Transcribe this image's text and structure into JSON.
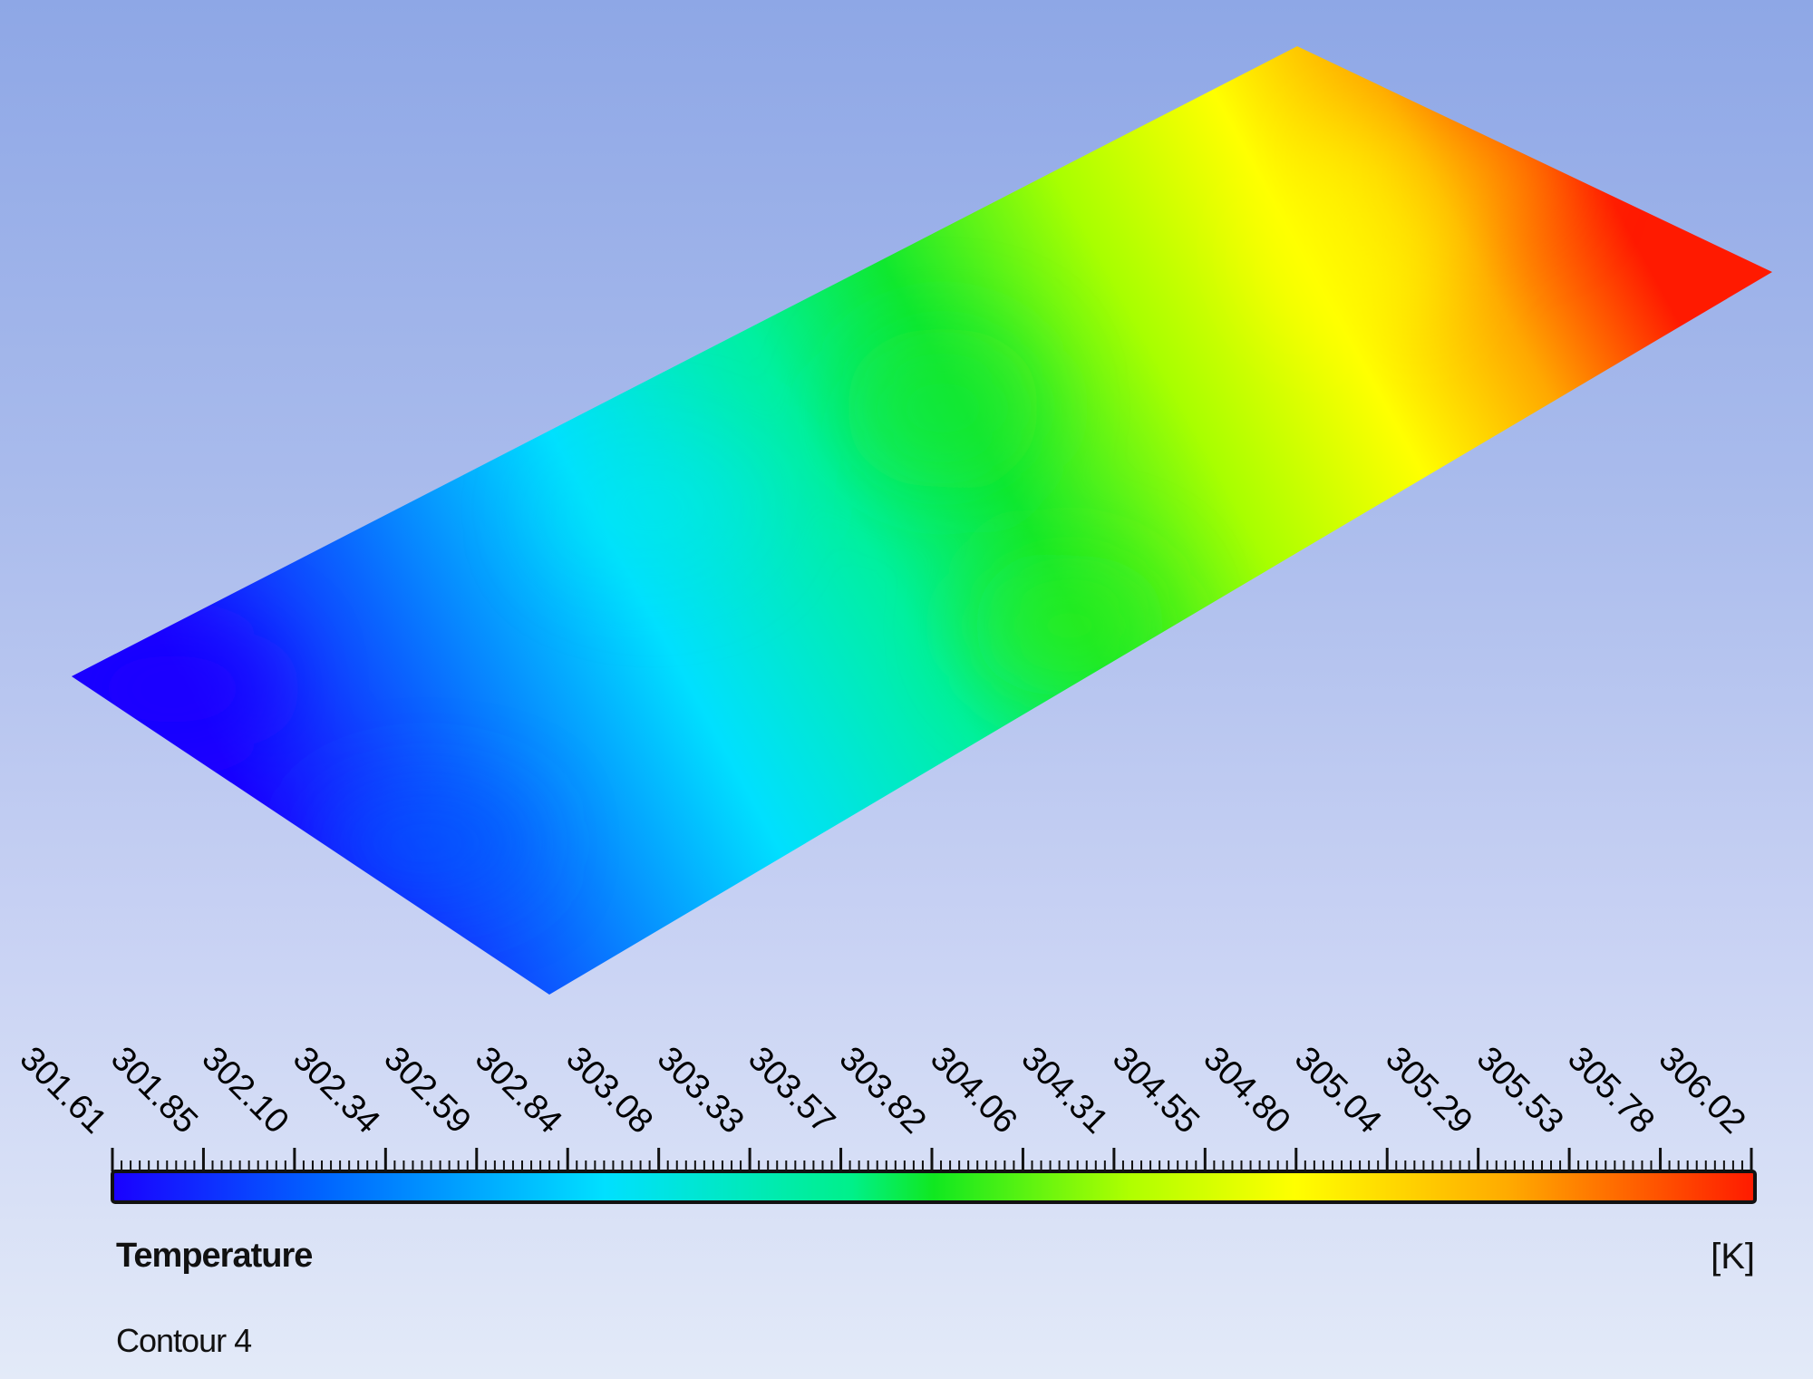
{
  "chart_data": {
    "type": "heatmap",
    "title": "Temperature",
    "unit": "[K]",
    "caption": "Contour 4",
    "colormap": [
      "#1a00ff",
      "#0066ff",
      "#00e5ff",
      "#00f08a",
      "#22e600",
      "#b0ff00",
      "#ffff00",
      "#ffaa00",
      "#ff1a00"
    ],
    "range": [
      301.61,
      306.02
    ],
    "colorbar_ticks": [
      "301.61",
      "301.85",
      "302.10",
      "302.34",
      "302.59",
      "302.84",
      "303.08",
      "303.33",
      "303.57",
      "303.82",
      "304.06",
      "304.31",
      "304.55",
      "304.80",
      "305.04",
      "305.29",
      "305.53",
      "305.78",
      "306.02"
    ],
    "legend_placement": "bottom"
  }
}
